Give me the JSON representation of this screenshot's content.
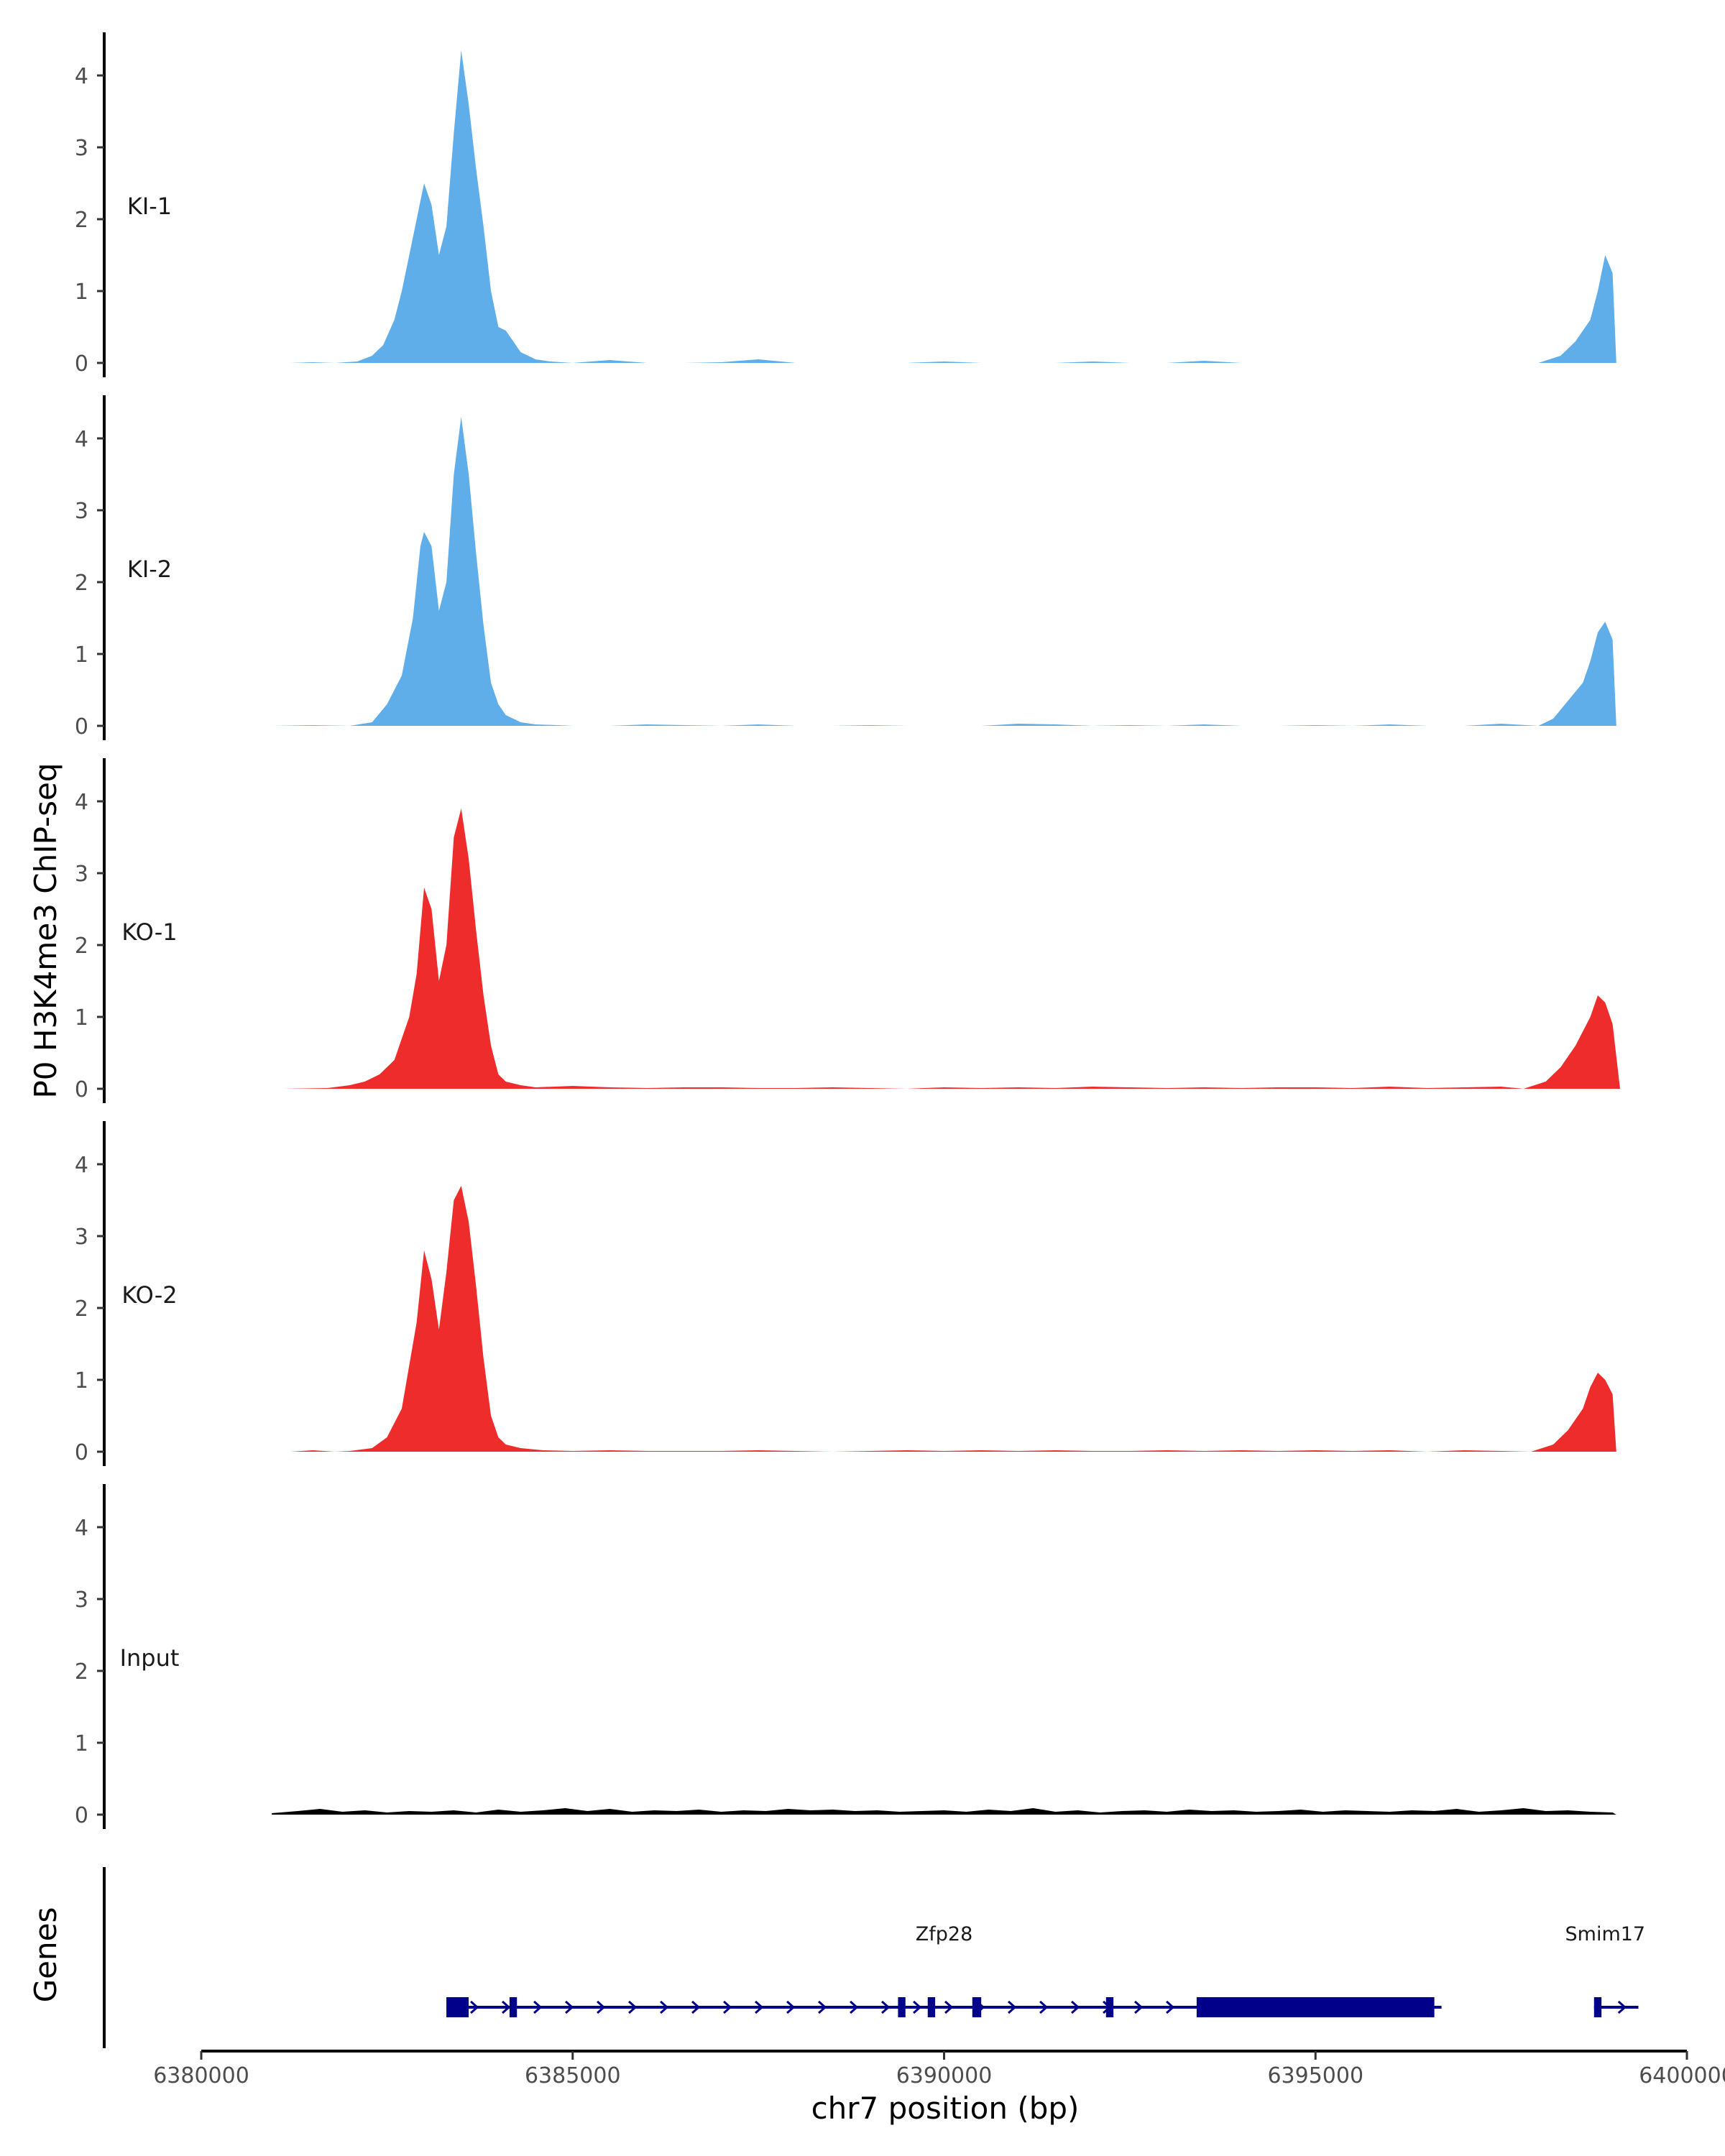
{
  "chart_data": {
    "type": "area",
    "xlabel": "chr7 position (bp)",
    "ylabel": "P0 H3K4me3 ChIP-seq",
    "genes_label": "Genes",
    "xlim": [
      6380000,
      6400000
    ],
    "xticks": [
      6380000,
      6385000,
      6390000,
      6395000,
      6400000
    ],
    "xtick_labels": [
      "6380000",
      "6385000",
      "6390000",
      "6395000",
      "6400000"
    ],
    "ylim": [
      0,
      4.5
    ],
    "yticks": [
      0,
      1,
      2,
      3,
      4
    ],
    "ytick_labels": [
      "0",
      "1",
      "2",
      "3",
      "4"
    ],
    "colors": {
      "KI": "#5faeea",
      "KO": "#ee2c2c",
      "Input": "#000000",
      "gene": "#00008b",
      "axis": "#000000"
    },
    "tracks": [
      {
        "name": "KI-1",
        "color": "#5faeea",
        "x": [
          6380950,
          6381200,
          6381500,
          6381800,
          6382100,
          6382300,
          6382450,
          6382600,
          6382700,
          6382800,
          6382900,
          6383000,
          6383100,
          6383200,
          6383300,
          6383400,
          6383500,
          6383600,
          6383700,
          6383800,
          6383900,
          6384000,
          6384100,
          6384200,
          6384300,
          6384500,
          6384700,
          6385000,
          6385500,
          6386000,
          6386500,
          6387000,
          6387500,
          6388000,
          6388500,
          6389000,
          6389500,
          6390000,
          6390500,
          6391000,
          6391500,
          6392000,
          6392500,
          6393000,
          6393500,
          6394000,
          6394500,
          6395000,
          6395500,
          6396000,
          6396500,
          6397000,
          6397500,
          6398000,
          6398300,
          6398500,
          6398700,
          6398800,
          6398900,
          6399000,
          6399050
        ],
        "y": [
          0,
          0,
          0.01,
          0,
          0.02,
          0.1,
          0.25,
          0.6,
          1.0,
          1.5,
          2.0,
          2.5,
          2.2,
          1.5,
          1.9,
          3.2,
          4.35,
          3.6,
          2.7,
          1.9,
          1.0,
          0.5,
          0.45,
          0.3,
          0.15,
          0.05,
          0.02,
          0,
          0.04,
          0,
          0,
          0.01,
          0.05,
          0,
          0,
          0,
          0,
          0.02,
          0,
          0,
          0,
          0.02,
          0,
          0,
          0.03,
          0,
          0,
          0,
          0,
          0,
          0,
          0,
          0,
          0,
          0.1,
          0.3,
          0.6,
          1.0,
          1.5,
          1.25,
          0
        ]
      },
      {
        "name": "KI-2",
        "color": "#5faeea",
        "x": [
          6380950,
          6381500,
          6382000,
          6382300,
          6382500,
          6382700,
          6382850,
          6382950,
          6383000,
          6383100,
          6383200,
          6383300,
          6383400,
          6383500,
          6383600,
          6383700,
          6383800,
          6383900,
          6384000,
          6384100,
          6384200,
          6384300,
          6384500,
          6384800,
          6385000,
          6385500,
          6386000,
          6386500,
          6387000,
          6387500,
          6388000,
          6388500,
          6389000,
          6389500,
          6390000,
          6390500,
          6391000,
          6391500,
          6392000,
          6392500,
          6393000,
          6393500,
          6394000,
          6394500,
          6395000,
          6395500,
          6396000,
          6396500,
          6397000,
          6397500,
          6398000,
          6398200,
          6398400,
          6398600,
          6398700,
          6398800,
          6398900,
          6399000,
          6399050
        ],
        "y": [
          0,
          0.01,
          0,
          0.05,
          0.3,
          0.7,
          1.5,
          2.5,
          2.7,
          2.5,
          1.6,
          2.0,
          3.5,
          4.3,
          3.5,
          2.4,
          1.4,
          0.6,
          0.3,
          0.15,
          0.1,
          0.05,
          0.02,
          0.01,
          0,
          0,
          0.02,
          0.01,
          0,
          0.02,
          0,
          0,
          0.01,
          0,
          0,
          0,
          0.03,
          0.02,
          0,
          0.01,
          0,
          0.02,
          0,
          0,
          0.01,
          0,
          0.02,
          0,
          0,
          0.03,
          0,
          0.1,
          0.35,
          0.6,
          0.9,
          1.3,
          1.45,
          1.2,
          0
        ]
      },
      {
        "name": "KO-1",
        "color": "#ee2c2c",
        "x": [
          6381100,
          6381700,
          6382000,
          6382200,
          6382400,
          6382600,
          6382800,
          6382900,
          6383000,
          6383100,
          6383200,
          6383300,
          6383400,
          6383500,
          6383600,
          6383700,
          6383800,
          6383900,
          6384000,
          6384100,
          6384300,
          6384500,
          6385000,
          6385500,
          6386000,
          6386500,
          6387000,
          6387500,
          6388000,
          6388500,
          6389000,
          6389500,
          6390000,
          6390500,
          6391000,
          6391500,
          6392000,
          6392500,
          6393000,
          6393500,
          6394000,
          6394500,
          6395000,
          6395500,
          6396000,
          6396500,
          6397000,
          6397500,
          6397800,
          6398100,
          6398300,
          6398500,
          6398700,
          6398800,
          6398900,
          6399000,
          6399100
        ],
        "y": [
          0,
          0.01,
          0.05,
          0.1,
          0.2,
          0.4,
          1.0,
          1.6,
          2.8,
          2.5,
          1.5,
          2.0,
          3.5,
          3.9,
          3.2,
          2.2,
          1.3,
          0.6,
          0.2,
          0.1,
          0.05,
          0.02,
          0.04,
          0.02,
          0.01,
          0.02,
          0.02,
          0.01,
          0.01,
          0.02,
          0.01,
          0,
          0.02,
          0.01,
          0.02,
          0.01,
          0.03,
          0.02,
          0.01,
          0.02,
          0.01,
          0.02,
          0.02,
          0.01,
          0.03,
          0.01,
          0.02,
          0.03,
          0,
          0.1,
          0.3,
          0.6,
          1.0,
          1.3,
          1.2,
          0.9,
          0
        ]
      },
      {
        "name": "KO-2",
        "color": "#ee2c2c",
        "x": [
          6381200,
          6381500,
          6381800,
          6382000,
          6382300,
          6382500,
          6382700,
          6382900,
          6383000,
          6383100,
          6383200,
          6383300,
          6383400,
          6383500,
          6383600,
          6383700,
          6383800,
          6383900,
          6384000,
          6384100,
          6384300,
          6384600,
          6385000,
          6385500,
          6386000,
          6386500,
          6387000,
          6387500,
          6388000,
          6388500,
          6389000,
          6389500,
          6390000,
          6390500,
          6391000,
          6391500,
          6392000,
          6392500,
          6393000,
          6393500,
          6394000,
          6394500,
          6395000,
          6395500,
          6396000,
          6396500,
          6397000,
          6397500,
          6397900,
          6398200,
          6398400,
          6398600,
          6398700,
          6398800,
          6398900,
          6399000,
          6399050
        ],
        "y": [
          0,
          0.02,
          0,
          0.01,
          0.05,
          0.2,
          0.6,
          1.8,
          2.8,
          2.4,
          1.7,
          2.5,
          3.5,
          3.7,
          3.2,
          2.3,
          1.3,
          0.5,
          0.2,
          0.1,
          0.05,
          0.02,
          0.01,
          0.02,
          0.01,
          0.01,
          0.01,
          0.02,
          0.01,
          0,
          0.01,
          0.02,
          0.01,
          0.02,
          0.01,
          0.02,
          0.01,
          0.01,
          0.02,
          0.01,
          0.02,
          0.01,
          0.02,
          0.01,
          0.02,
          0,
          0.02,
          0.01,
          0,
          0.1,
          0.3,
          0.6,
          0.9,
          1.1,
          1.0,
          0.8,
          0
        ]
      },
      {
        "name": "Input",
        "color": "#000000",
        "x": [
          6380950,
          6381300,
          6381600,
          6381900,
          6382200,
          6382500,
          6382800,
          6383100,
          6383400,
          6383700,
          6384000,
          6384300,
          6384600,
          6384900,
          6385200,
          6385500,
          6385800,
          6386100,
          6386400,
          6386700,
          6387000,
          6387300,
          6387600,
          6387900,
          6388200,
          6388500,
          6388800,
          6389100,
          6389400,
          6389700,
          6390000,
          6390300,
          6390600,
          6390900,
          6391200,
          6391500,
          6391800,
          6392100,
          6392400,
          6392700,
          6393000,
          6393300,
          6393600,
          6393900,
          6394200,
          6394500,
          6394800,
          6395100,
          6395400,
          6395700,
          6396000,
          6396300,
          6396600,
          6396900,
          6397200,
          6397500,
          6397800,
          6398100,
          6398400,
          6398700,
          6399000,
          6399050
        ],
        "y": [
          0.02,
          0.05,
          0.08,
          0.04,
          0.06,
          0.03,
          0.05,
          0.04,
          0.06,
          0.03,
          0.07,
          0.04,
          0.06,
          0.09,
          0.05,
          0.08,
          0.04,
          0.06,
          0.05,
          0.07,
          0.04,
          0.06,
          0.05,
          0.08,
          0.06,
          0.07,
          0.05,
          0.06,
          0.04,
          0.05,
          0.06,
          0.04,
          0.07,
          0.05,
          0.09,
          0.04,
          0.06,
          0.03,
          0.05,
          0.06,
          0.04,
          0.07,
          0.05,
          0.06,
          0.04,
          0.05,
          0.07,
          0.04,
          0.06,
          0.05,
          0.04,
          0.06,
          0.05,
          0.08,
          0.04,
          0.06,
          0.09,
          0.05,
          0.06,
          0.04,
          0.03,
          0
        ]
      }
    ],
    "genes": [
      {
        "name": "Zfp28",
        "start": 6383300,
        "end": 6396600,
        "exons": [
          [
            6383300,
            6383600
          ],
          [
            6384150,
            6384250
          ],
          [
            6389380,
            6389480
          ],
          [
            6389780,
            6389880
          ],
          [
            6390380,
            6390500
          ],
          [
            6392180,
            6392280
          ],
          [
            6393400,
            6396600
          ]
        ]
      },
      {
        "name": "Smim17",
        "start": 6398750,
        "end": 6399250,
        "exons": [
          [
            6398750,
            6398850
          ]
        ]
      }
    ]
  }
}
